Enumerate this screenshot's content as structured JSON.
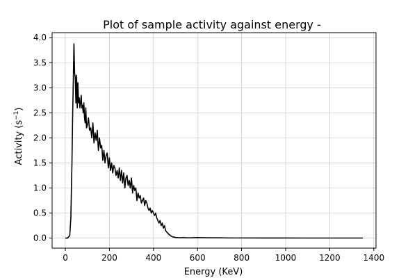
{
  "chart_data": {
    "type": "line",
    "title": "Plot of sample activity against energy -",
    "xlabel": "Energy (KeV)",
    "ylabel_base": "Activity (s",
    "ylabel_sup": "−1",
    "ylabel_close": ")",
    "xlim": [
      -60,
      1410
    ],
    "ylim": [
      -0.2,
      4.1
    ],
    "xticks": [
      0,
      200,
      400,
      600,
      800,
      1000,
      1200,
      1400
    ],
    "yticks": [
      0.0,
      0.5,
      1.0,
      1.5,
      2.0,
      2.5,
      3.0,
      3.5,
      4.0
    ],
    "xtick_labels": [
      "0",
      "200",
      "400",
      "600",
      "800",
      "1000",
      "1200",
      "1400"
    ],
    "ytick_labels": [
      "0.0",
      "0.5",
      "1.0",
      "1.5",
      "2.0",
      "2.5",
      "3.0",
      "3.5",
      "4.0"
    ],
    "grid": true,
    "line_color": "#000000",
    "series": [
      {
        "x": [
          0,
          10,
          20,
          25,
          30,
          33,
          36,
          39,
          42,
          45,
          48,
          51,
          54,
          57,
          60,
          63,
          66,
          69,
          72,
          75,
          78,
          81,
          84,
          87,
          90,
          93,
          96,
          100,
          105,
          110,
          115,
          120,
          125,
          130,
          135,
          140,
          145,
          150,
          155,
          160,
          165,
          170,
          175,
          180,
          185,
          190,
          195,
          200,
          205,
          210,
          215,
          220,
          225,
          230,
          235,
          240,
          245,
          250,
          255,
          260,
          265,
          270,
          275,
          280,
          285,
          290,
          295,
          300,
          305,
          310,
          315,
          320,
          325,
          330,
          335,
          340,
          345,
          350,
          355,
          360,
          365,
          370,
          375,
          380,
          385,
          390,
          395,
          400,
          405,
          410,
          415,
          420,
          425,
          430,
          435,
          440,
          445,
          450,
          455,
          460,
          465,
          470,
          475,
          480,
          485,
          490,
          495,
          500,
          510,
          520,
          530,
          550,
          570,
          600,
          650,
          700,
          750,
          800,
          900,
          1000,
          1100,
          1200,
          1300,
          1350
        ],
        "y": [
          0.0,
          0.0,
          0.05,
          0.4,
          1.5,
          2.4,
          3.1,
          3.88,
          3.3,
          3.2,
          2.7,
          3.25,
          2.6,
          3.1,
          2.7,
          2.8,
          2.6,
          2.7,
          2.85,
          2.6,
          2.65,
          2.5,
          2.7,
          2.4,
          2.3,
          2.6,
          2.2,
          2.25,
          2.4,
          2.15,
          2.2,
          2.0,
          2.3,
          1.9,
          2.1,
          1.95,
          2.15,
          1.75,
          2.0,
          1.8,
          1.85,
          1.55,
          1.75,
          1.5,
          1.65,
          1.7,
          1.4,
          1.6,
          1.35,
          1.5,
          1.3,
          1.45,
          1.4,
          1.25,
          1.35,
          1.2,
          1.4,
          1.15,
          1.35,
          1.1,
          1.3,
          1.0,
          1.2,
          1.25,
          1.05,
          1.15,
          1.0,
          1.2,
          0.9,
          1.05,
          0.95,
          1.0,
          0.75,
          0.9,
          0.8,
          0.85,
          0.7,
          0.75,
          0.8,
          0.65,
          0.75,
          0.7,
          0.6,
          0.55,
          0.6,
          0.5,
          0.55,
          0.5,
          0.45,
          0.5,
          0.4,
          0.35,
          0.3,
          0.35,
          0.25,
          0.3,
          0.2,
          0.25,
          0.15,
          0.12,
          0.1,
          0.07,
          0.06,
          0.04,
          0.03,
          0.02,
          0.02,
          0.01,
          0.01,
          0.005,
          0.01,
          0.005,
          0.005,
          0.01,
          0.005,
          0.005,
          0.003,
          0.003,
          0.002,
          0.002,
          0.001,
          0.001,
          0.001,
          0.001
        ]
      }
    ]
  }
}
